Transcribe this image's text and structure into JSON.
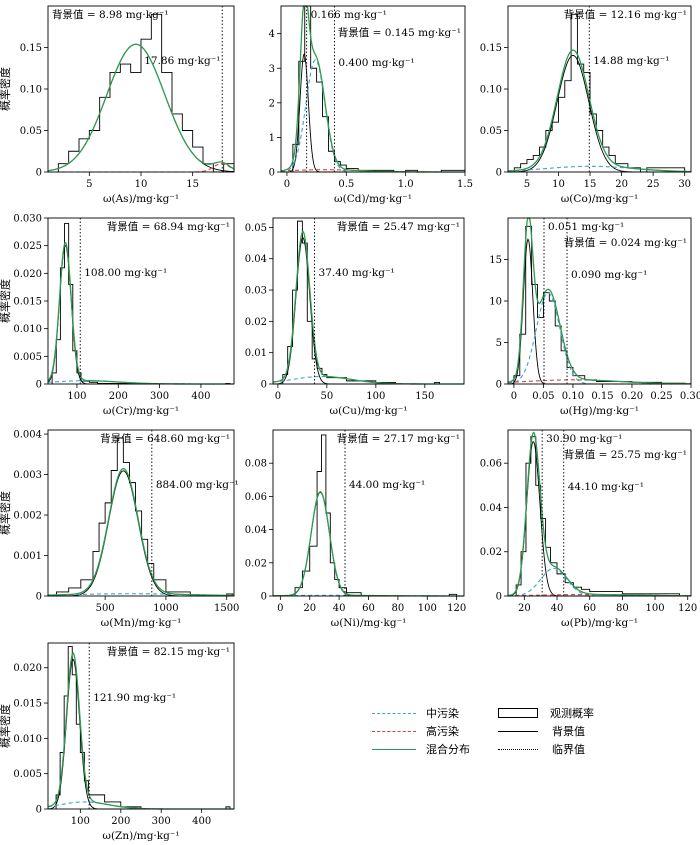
{
  "figure": {
    "ylabel": "概率密度",
    "bg_prefix": "背景值 = ",
    "unit": "mg·kg⁻¹"
  },
  "legend": {
    "items": [
      {
        "key": "moderate",
        "label": "中污染",
        "color": "#3ba5d8",
        "style": "dashed"
      },
      {
        "key": "high",
        "label": "高污染",
        "color": "#d9413a",
        "style": "dashed"
      },
      {
        "key": "mixed",
        "label": "混合分布",
        "color": "#2e9a52",
        "style": "solid"
      },
      {
        "key": "observed",
        "label": "观测概率",
        "color": "#000000",
        "style": "box"
      },
      {
        "key": "background",
        "label": "背景值",
        "color": "#000000",
        "style": "solid"
      },
      {
        "key": "critical",
        "label": "临界值",
        "color": "#000000",
        "style": "dotted"
      }
    ]
  },
  "chart_data": [
    {
      "type": "area",
      "element": "As",
      "xlabel": "ω(As)/mg·kg⁻¹",
      "xlim": [
        1,
        19
      ],
      "ylim": [
        0,
        0.2
      ],
      "xticks": [
        "5",
        "10",
        "15"
      ],
      "xtick_values": [
        5,
        10,
        15
      ],
      "yticks": [
        "0",
        "0.05",
        "0.10",
        "0.15"
      ],
      "ytick_values": [
        0,
        0.05,
        0.1,
        0.15
      ],
      "background_value": "8.98",
      "critical_values": [
        {
          "value": 17.86,
          "label": "17.86 mg·kg⁻¹"
        }
      ],
      "bg_label_pos": "top-left",
      "hist_bins": [
        2,
        3,
        4,
        5,
        6,
        7,
        8,
        9,
        10,
        11,
        12,
        13,
        14,
        15,
        16,
        17,
        18,
        19
      ],
      "hist_values": [
        0.01,
        0.025,
        0.04,
        0.05,
        0.09,
        0.12,
        0.13,
        0.12,
        0.16,
        0.19,
        0.12,
        0.07,
        0.05,
        0.03,
        0.01,
        0.0,
        0.01
      ],
      "components": [
        {
          "key": "background",
          "mu": 9.5,
          "sd": 2.8,
          "w": 1.08
        },
        {
          "key": "high",
          "mu": 17.8,
          "sd": 0.8,
          "w": 0.02
        }
      ]
    },
    {
      "type": "area",
      "element": "Cd",
      "xlabel": "ω(Cd)/mg·kg⁻¹",
      "xlim": [
        -0.05,
        1.5
      ],
      "ylim": [
        0,
        4.8
      ],
      "xticks": [
        "0",
        "0.5",
        "1.0",
        "1.5"
      ],
      "xtick_values": [
        0,
        0.5,
        1.0,
        1.5
      ],
      "yticks": [
        "0",
        "1",
        "2",
        "3",
        "4"
      ],
      "ytick_values": [
        0,
        1,
        2,
        3,
        4
      ],
      "background_value": "0.145",
      "critical_values": [
        {
          "value": 0.166,
          "label": "0.166 mg·kg⁻¹"
        },
        {
          "value": 0.4,
          "label": "0.400 mg·kg⁻¹"
        }
      ],
      "bg_label_pos": "top-right",
      "hist_bins": [
        0.05,
        0.1,
        0.15,
        0.2,
        0.25,
        0.3,
        0.35,
        0.4,
        0.45,
        0.5,
        0.6,
        0.7,
        0.8,
        0.9,
        1.0,
        1.1,
        1.2,
        1.3,
        1.4,
        1.5
      ],
      "hist_values": [
        0.8,
        3.2,
        4.8,
        3.0,
        2.6,
        1.6,
        0.6,
        0.3,
        0.2,
        0.1,
        0.05,
        0.05,
        0.05,
        0.0,
        0.05,
        0.0,
        0.0,
        0.05,
        0.05
      ],
      "components": [
        {
          "key": "background",
          "mu": 0.145,
          "sd": 0.035,
          "w": 0.3
        },
        {
          "key": "moderate",
          "mu": 0.24,
          "sd": 0.08,
          "w": 0.65
        },
        {
          "key": "high",
          "mu": 0.32,
          "sd": 0.3,
          "w": 0.05
        }
      ]
    },
    {
      "type": "area",
      "element": "Co",
      "xlabel": "ω(Co)/mg·kg⁻¹",
      "xlim": [
        2,
        31
      ],
      "ylim": [
        0,
        0.2
      ],
      "xticks": [
        "5",
        "10",
        "15",
        "20",
        "25",
        "30"
      ],
      "xtick_values": [
        5,
        10,
        15,
        20,
        25,
        30
      ],
      "yticks": [
        "0",
        "0.05",
        "0.10",
        "0.15"
      ],
      "ytick_values": [
        0,
        0.05,
        0.1,
        0.15
      ],
      "background_value": "12.16",
      "critical_values": [
        {
          "value": 14.88,
          "label": "14.88 mg·kg⁻¹"
        }
      ],
      "bg_label_pos": "top-right",
      "hist_bins": [
        3,
        4,
        5,
        6,
        7,
        8,
        9,
        10,
        11,
        12,
        13,
        14,
        15,
        16,
        17,
        18,
        19,
        20,
        21,
        22,
        23,
        24,
        26,
        28,
        30
      ],
      "hist_values": [
        0.005,
        0.01,
        0.015,
        0.02,
        0.03,
        0.05,
        0.06,
        0.09,
        0.11,
        0.19,
        0.13,
        0.12,
        0.07,
        0.05,
        0.03,
        0.02,
        0.01,
        0.01,
        0.005,
        0.005,
        0.0,
        0.005,
        0.005,
        0.005
      ],
      "components": [
        {
          "key": "background",
          "mu": 12.3,
          "sd": 2.5,
          "w": 0.88
        },
        {
          "key": "moderate",
          "mu": 15,
          "sd": 7,
          "w": 0.12
        }
      ]
    },
    {
      "type": "area",
      "element": "Cr",
      "xlabel": "ω(Cr)/mg·kg⁻¹",
      "xlim": [
        30,
        480
      ],
      "ylim": [
        0,
        0.03
      ],
      "xticks": [
        "100",
        "200",
        "300",
        "400"
      ],
      "xtick_values": [
        100,
        200,
        300,
        400
      ],
      "yticks": [
        "0",
        "0.005",
        "0.010",
        "0.015",
        "0.020",
        "0.025",
        "0.030"
      ],
      "ytick_values": [
        0,
        0.005,
        0.01,
        0.015,
        0.02,
        0.025,
        0.03
      ],
      "background_value": "68.94",
      "critical_values": [
        {
          "value": 108.0,
          "label": "108.00 mg·kg⁻¹"
        }
      ],
      "bg_label_pos": "top-right",
      "hist_bins": [
        40,
        50,
        60,
        70,
        80,
        90,
        100,
        110,
        130,
        150,
        200,
        250,
        300,
        460,
        470
      ],
      "hist_values": [
        0.002,
        0.008,
        0.021,
        0.029,
        0.018,
        0.006,
        0.002,
        0.0005,
        0.0003,
        0.0001,
        0.0001,
        0.0,
        0.0,
        0.0001
      ],
      "components": [
        {
          "key": "background",
          "mu": 72,
          "sd": 14,
          "w": 0.88
        },
        {
          "key": "moderate",
          "mu": 120,
          "sd": 80,
          "w": 0.12
        }
      ]
    },
    {
      "type": "area",
      "element": "Cu",
      "xlabel": "ω(Cu)/mg·kg⁻¹",
      "xlim": [
        -5,
        190
      ],
      "ylim": [
        0,
        0.053
      ],
      "xticks": [
        "0",
        "50",
        "100",
        "150"
      ],
      "xtick_values": [
        0,
        50,
        100,
        150
      ],
      "yticks": [
        "0",
        "0.01",
        "0.02",
        "0.03",
        "0.04",
        "0.05"
      ],
      "ytick_values": [
        0,
        0.01,
        0.02,
        0.03,
        0.04,
        0.05
      ],
      "background_value": "25.47",
      "critical_values": [
        {
          "value": 37.4,
          "label": "37.40 mg·kg⁻¹"
        }
      ],
      "bg_label_pos": "top-right",
      "hist_bins": [
        5,
        10,
        15,
        20,
        25,
        30,
        35,
        40,
        45,
        50,
        60,
        70,
        80,
        100,
        120,
        160,
        165
      ],
      "hist_values": [
        0.003,
        0.012,
        0.03,
        0.052,
        0.045,
        0.02,
        0.008,
        0.005,
        0.003,
        0.002,
        0.002,
        0.001,
        0.001,
        0.0005,
        0.0,
        0.0005
      ],
      "components": [
        {
          "key": "background",
          "mu": 25.5,
          "sd": 7,
          "w": 0.82
        },
        {
          "key": "moderate",
          "mu": 45,
          "sd": 30,
          "w": 0.18
        }
      ]
    },
    {
      "type": "area",
      "element": "Hg",
      "xlabel": "ω(Hg)/mg·kg⁻¹",
      "xlim": [
        -0.01,
        0.3
      ],
      "ylim": [
        0,
        20
      ],
      "xticks": [
        "0",
        "0.05",
        "0.10",
        "0.15",
        "0.20",
        "0.25",
        "0.30"
      ],
      "xtick_values": [
        0,
        0.05,
        0.1,
        0.15,
        0.2,
        0.25,
        0.3
      ],
      "yticks": [
        "0",
        "5",
        "10",
        "15"
      ],
      "ytick_values": [
        0,
        5,
        10,
        15
      ],
      "background_value": "0.024",
      "critical_values": [
        {
          "value": 0.051,
          "label": "0.051 mg·kg⁻¹"
        },
        {
          "value": 0.09,
          "label": "0.090 mg·kg⁻¹"
        }
      ],
      "bg_label_pos": "top-right-low",
      "hist_bins": [
        0.0,
        0.01,
        0.02,
        0.03,
        0.04,
        0.05,
        0.06,
        0.07,
        0.08,
        0.09,
        0.1,
        0.12,
        0.14,
        0.16,
        0.2,
        0.25,
        0.29
      ],
      "hist_values": [
        1,
        6,
        19,
        12,
        8,
        11,
        10,
        7,
        4,
        2,
        1,
        0.5,
        0.3,
        0.3,
        0.2,
        0.1
      ],
      "components": [
        {
          "key": "background",
          "mu": 0.024,
          "sd": 0.008,
          "w": 0.35
        },
        {
          "key": "moderate",
          "mu": 0.058,
          "sd": 0.02,
          "w": 0.55
        },
        {
          "key": "high",
          "mu": 0.1,
          "sd": 0.08,
          "w": 0.1
        }
      ]
    },
    {
      "type": "area",
      "element": "Mn",
      "xlabel": "ω(Mn)/mg·kg⁻¹",
      "xlim": [
        30,
        1560
      ],
      "ylim": [
        0,
        0.0041
      ],
      "xticks": [
        "500",
        "1000",
        "1500"
      ],
      "xtick_values": [
        500,
        1000,
        1500
      ],
      "yticks": [
        "0",
        "0.001",
        "0.002",
        "0.003",
        "0.004"
      ],
      "ytick_values": [
        0,
        0.001,
        0.002,
        0.003,
        0.004
      ],
      "background_value": "648.60",
      "critical_values": [
        {
          "value": 884.0,
          "label": "884.00 mg·kg⁻¹"
        }
      ],
      "bg_label_pos": "top-right",
      "hist_bins": [
        100,
        200,
        300,
        400,
        450,
        500,
        550,
        600,
        650,
        700,
        750,
        800,
        850,
        900,
        1000,
        1100,
        1200,
        1500,
        1550
      ],
      "hist_values": [
        0.0001,
        0.0002,
        0.0004,
        0.0011,
        0.0018,
        0.0023,
        0.0031,
        0.0039,
        0.0033,
        0.0028,
        0.0021,
        0.0014,
        0.0008,
        0.0004,
        0.0001,
        0.0001,
        0.0,
        5e-05
      ],
      "components": [
        {
          "key": "background",
          "mu": 650,
          "sd": 120,
          "w": 0.93
        },
        {
          "key": "moderate",
          "mu": 700,
          "sd": 500,
          "w": 0.07
        }
      ]
    },
    {
      "type": "area",
      "element": "Ni",
      "xlabel": "ω(Ni)/mg·kg⁻¹",
      "xlim": [
        -5,
        125
      ],
      "ylim": [
        0,
        0.1
      ],
      "xticks": [
        "0",
        "20",
        "40",
        "60",
        "80",
        "100",
        "120"
      ],
      "xtick_values": [
        0,
        20,
        40,
        60,
        80,
        100,
        120
      ],
      "yticks": [
        "0",
        "0.02",
        "0.04",
        "0.06",
        "0.08"
      ],
      "ytick_values": [
        0,
        0.02,
        0.04,
        0.06,
        0.08
      ],
      "background_value": "27.17",
      "critical_values": [
        {
          "value": 44.0,
          "label": "44.00 mg·kg⁻¹"
        }
      ],
      "bg_label_pos": "top-right",
      "hist_bins": [
        10,
        15,
        20,
        25,
        28,
        31,
        34,
        37,
        40,
        45,
        50,
        55,
        115,
        120
      ],
      "hist_values": [
        0.005,
        0.015,
        0.03,
        0.075,
        0.097,
        0.05,
        0.02,
        0.01,
        0.005,
        0.002,
        0.002,
        0.0,
        0.001
      ],
      "components": [
        {
          "key": "background",
          "mu": 27.2,
          "sd": 6.2,
          "w": 0.97
        },
        {
          "key": "moderate",
          "mu": 35,
          "sd": 30,
          "w": 0.03
        }
      ]
    },
    {
      "type": "area",
      "element": "Pb",
      "xlabel": "ω(Pb)/mg·kg⁻¹",
      "xlim": [
        10,
        122
      ],
      "ylim": [
        0,
        0.075
      ],
      "xticks": [
        "20",
        "40",
        "60",
        "80",
        "100",
        "120"
      ],
      "xtick_values": [
        20,
        40,
        60,
        80,
        100,
        120
      ],
      "yticks": [
        "0",
        "0.02",
        "0.04",
        "0.06"
      ],
      "ytick_values": [
        0,
        0.02,
        0.04,
        0.06
      ],
      "background_value": "25.75",
      "critical_values": [
        {
          "value": 30.9,
          "label": "30.90 mg·kg⁻¹"
        },
        {
          "value": 44.1,
          "label": "44.10 mg·kg⁻¹"
        }
      ],
      "bg_label_pos": "top-right-low",
      "hist_bins": [
        15,
        18,
        21,
        24,
        27,
        30,
        33,
        36,
        40,
        45,
        50,
        55,
        60,
        70,
        80,
        90,
        110,
        115
      ],
      "hist_values": [
        0.005,
        0.02,
        0.06,
        0.072,
        0.05,
        0.035,
        0.022,
        0.015,
        0.01,
        0.006,
        0.004,
        0.003,
        0.002,
        0.002,
        0.001,
        0.001,
        0.001
      ],
      "components": [
        {
          "key": "background",
          "mu": 25.5,
          "sd": 4,
          "w": 0.7
        },
        {
          "key": "moderate",
          "mu": 38,
          "sd": 8,
          "w": 0.25
        },
        {
          "key": "high",
          "mu": 60,
          "sd": 30,
          "w": 0.05
        }
      ]
    },
    {
      "type": "area",
      "element": "Zn",
      "xlabel": "ω(Zn)/mg·kg⁻¹",
      "xlim": [
        20,
        480
      ],
      "ylim": [
        0,
        0.0235
      ],
      "xticks": [
        "100",
        "200",
        "300",
        "400"
      ],
      "xtick_values": [
        100,
        200,
        300,
        400
      ],
      "yticks": [
        "0",
        "0.005",
        "0.010",
        "0.015",
        "0.020"
      ],
      "ytick_values": [
        0,
        0.005,
        0.01,
        0.015,
        0.02
      ],
      "background_value": "82.15",
      "critical_values": [
        {
          "value": 121.9,
          "label": "121.90 mg·kg⁻¹"
        }
      ],
      "bg_label_pos": "top-right",
      "hist_bins": [
        40,
        50,
        60,
        70,
        80,
        90,
        100,
        110,
        120,
        140,
        160,
        180,
        200,
        250,
        460,
        470
      ],
      "hist_values": [
        0.002,
        0.008,
        0.016,
        0.023,
        0.019,
        0.012,
        0.008,
        0.004,
        0.002,
        0.002,
        0.001,
        0.001,
        0.0003,
        0.0,
        0.0003
      ],
      "components": [
        {
          "key": "background",
          "mu": 82,
          "sd": 16,
          "w": 0.85
        },
        {
          "key": "moderate",
          "mu": 110,
          "sd": 60,
          "w": 0.15
        }
      ]
    }
  ]
}
